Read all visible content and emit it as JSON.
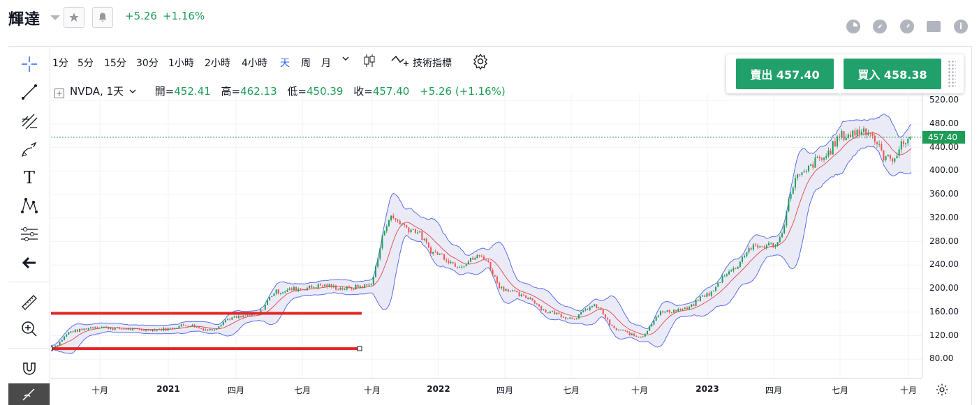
{
  "header": {
    "ticker_name": "輝達",
    "change": "+5.26",
    "change_pct": "+1.16%",
    "icons": [
      "pie-chart-icon",
      "compass-icon",
      "gauge-icon",
      "calendar-icon",
      "info-icon"
    ]
  },
  "toolbar": {
    "timeframes": [
      "1分",
      "5分",
      "15分",
      "30分",
      "1小時",
      "2小時",
      "4小時",
      "天",
      "周",
      "月"
    ],
    "active_timeframe": "天",
    "indicators_label": "技術指標"
  },
  "left_tools": [
    "crosshair-icon",
    "trendline-icon",
    "fib-tool-icon",
    "brush-icon",
    "text-tool-icon",
    "pattern-icon",
    "forecast-icon",
    "back-arrow-icon",
    "ruler-icon",
    "zoom-in-icon",
    "magnet-icon",
    "hide-drawings-icon"
  ],
  "legend": {
    "symbol": "NVDA, 1天",
    "open_label": "開=",
    "open": "452.41",
    "high_label": "高=",
    "high": "462.13",
    "low_label": "低=",
    "low": "450.39",
    "close_label": "收=",
    "close": "457.40",
    "change": "+5.26 (+1.16%)"
  },
  "trade": {
    "sell_label": "賣出 457.40",
    "buy_label": "買入 458.38"
  },
  "colors": {
    "up": "#1f9c57",
    "down": "#ef5350",
    "band": "#5b6ee8",
    "band_fill": "#e6e6f5",
    "mid": "#e05555",
    "hline": "#e32626",
    "accent": "#2962ff"
  },
  "price_axis": {
    "ticks": [
      "520.00",
      "480.00",
      "440.00",
      "400.00",
      "360.00",
      "320.00",
      "280.00",
      "240.00",
      "200.00",
      "160.00",
      "120.00",
      "80.00"
    ],
    "last_price": "457.40"
  },
  "time_axis": {
    "labels": [
      {
        "text": "十月",
        "bold": false
      },
      {
        "text": "2021",
        "bold": true
      },
      {
        "text": "四月",
        "bold": false
      },
      {
        "text": "七月",
        "bold": false
      },
      {
        "text": "十月",
        "bold": false
      },
      {
        "text": "2022",
        "bold": true
      },
      {
        "text": "四月",
        "bold": false
      },
      {
        "text": "七月",
        "bold": false
      },
      {
        "text": "十月",
        "bold": false
      },
      {
        "text": "2023",
        "bold": true
      },
      {
        "text": "四月",
        "bold": false
      },
      {
        "text": "七月",
        "bold": false
      },
      {
        "text": "十月",
        "bold": false
      }
    ]
  },
  "chart_data": {
    "type": "line",
    "symbol": "NVDA",
    "interval": "1天",
    "ylim": [
      60,
      530
    ],
    "overlay": "bollinger",
    "x": [
      "2020-08",
      "2020-09",
      "2020-10",
      "2020-11",
      "2020-12",
      "2021-01",
      "2021-02",
      "2021-03",
      "2021-04",
      "2021-05",
      "2021-06",
      "2021-07",
      "2021-08",
      "2021-09",
      "2021-10",
      "2021-11",
      "2021-12",
      "2022-01",
      "2022-02",
      "2022-03",
      "2022-04",
      "2022-05",
      "2022-06",
      "2022-07",
      "2022-08",
      "2022-09",
      "2022-10",
      "2022-11",
      "2022-12",
      "2023-01",
      "2023-02",
      "2023-03",
      "2023-04",
      "2023-05",
      "2023-06",
      "2023-07",
      "2023-08",
      "2023-09",
      "2023-10"
    ],
    "series": [
      {
        "values": [
          100,
          128,
          135,
          132,
          130,
          131,
          138,
          130,
          150,
          155,
          195,
          200,
          205,
          200,
          205,
          320,
          300,
          260,
          240,
          255,
          200,
          185,
          160,
          150,
          170,
          130,
          118,
          160,
          165,
          190,
          230,
          270,
          275,
          390,
          420,
          460,
          470,
          420,
          457
        ]
      }
    ],
    "horizontal_lines": [
      158,
      98
    ]
  }
}
